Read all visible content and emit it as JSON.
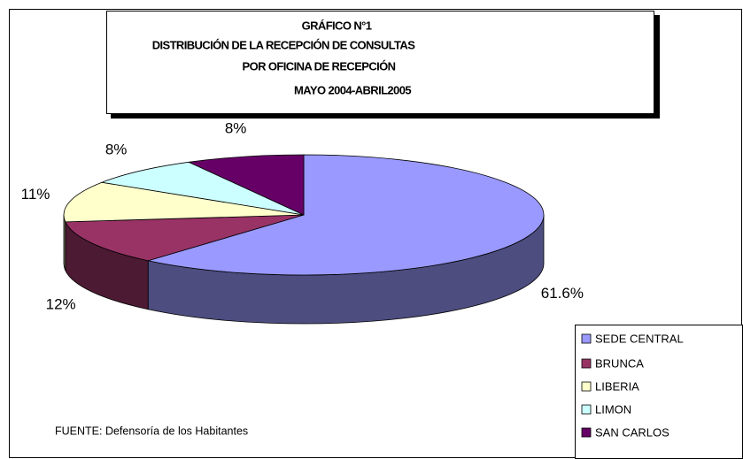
{
  "chart_data": {
    "type": "pie",
    "title": [
      "GRÁFICO N°1",
      "DISTRIBUCIÓN DE LA RECEPCIÓN DE CONSULTAS",
      "POR OFICINA DE RECEPCIÓN",
      "MAYO 2004-ABRIL2005"
    ],
    "categories": [
      "SEDE CENTRAL",
      "BRUNCA",
      "LIBERIA",
      "LIMON",
      "SAN CARLOS"
    ],
    "values": [
      61.6,
      12,
      11,
      8,
      8
    ],
    "value_labels": [
      "61.6%",
      "12%",
      "11%",
      "8%",
      "8%"
    ],
    "colors": [
      "#9999ff",
      "#993366",
      "#ffffcc",
      "#ccffff",
      "#660066"
    ],
    "legend": "lower right",
    "note": "FUENTE: Defensoría de los Habitantes"
  }
}
